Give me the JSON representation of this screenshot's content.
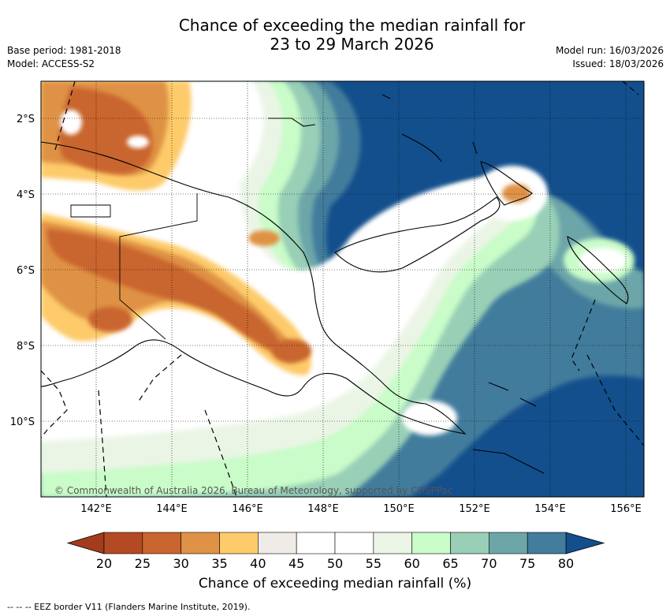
{
  "title": {
    "line1": "Chance of exceeding the median rainfall for",
    "line2": "23 to 29 March 2026"
  },
  "meta_left": {
    "base_period": "Base period: 1981-2018",
    "model": "Model: ACCESS-S2"
  },
  "meta_right": {
    "model_run": "Model run: 16/03/2026",
    "issued": "Issued: 18/03/2026"
  },
  "map": {
    "lat_ticks": [
      "2°S",
      "4°S",
      "6°S",
      "8°S",
      "10°S"
    ],
    "lon_ticks": [
      "142°E",
      "144°E",
      "146°E",
      "148°E",
      "150°E",
      "152°E",
      "154°E",
      "156°E"
    ],
    "copyright": "© Commonwealth of Australia 2026, Bureau of Meteorology, supported by COSPPac"
  },
  "colorbar": {
    "ticks": [
      "20",
      "25",
      "30",
      "35",
      "40",
      "45",
      "50",
      "55",
      "60",
      "65",
      "70",
      "75",
      "80"
    ],
    "colors": [
      "#b34a24",
      "#c9652f",
      "#df9245",
      "#fdcb6a",
      "#efebe7",
      "#ffffff",
      "#ffffff",
      "#ebf5e6",
      "#c9fcc8",
      "#98cfb6",
      "#6da6a9",
      "#437c9c"
    ],
    "low_color": "#a33c1c",
    "high_color": "#134f8c",
    "label": "Chance of exceeding median rainfall (%)"
  },
  "footnote": "-- -- -- EEZ border V11 (Flanders Marine Institute, 2019)."
}
